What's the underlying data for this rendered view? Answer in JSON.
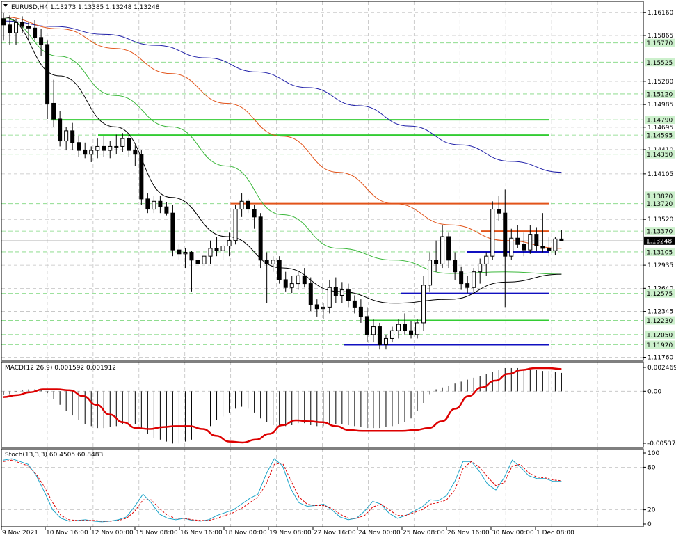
{
  "colors": {
    "background": "#ffffff",
    "grid": "#c0c0c0",
    "candle": "#000000",
    "ma_blue": "#1f1fa8",
    "ma_orange": "#e2541a",
    "ma_green": "#3cb83c",
    "ma_black": "#000000",
    "level_green": "#33cc33",
    "level_blue": "#1010c0",
    "level_orange": "#e2541a",
    "macd_hist": "#000000",
    "macd_signal": "#dd0000",
    "stoch_main": "#1aa3c8",
    "stoch_signal": "#dd0000"
  },
  "chart_data": [
    {
      "type": "candlestick",
      "panel": "price",
      "title": "EURUSD,H4  1.13273 1.13385 1.13248 1.13248",
      "symbol": "EURUSD",
      "timeframe": "H4",
      "ohlc_header": [
        1.13273,
        1.13385,
        1.13248,
        1.13248
      ],
      "current_price_label": "1.13248",
      "ylim": [
        1.1172,
        1.163
      ],
      "y_ticks": [
        1.1616,
        1.15865,
        1.1528,
        1.14985,
        1.14695,
        1.1441,
        1.141,
        1.1352,
        1.12935,
        1.1264,
        1.12345,
        1.1176
      ],
      "y_tick_labels": [
        "1.16160",
        "1.15865",
        "1.15280",
        "1.14985",
        "1.14695",
        "1.14410",
        "1.14105",
        "1.13520",
        "1.12935",
        "1.12640",
        "1.12345",
        "1.11760"
      ],
      "level_labels": [
        "1.15770",
        "1.15525",
        "1.15120",
        "1.14790",
        "1.14595",
        "1.14350",
        "1.13820",
        "1.13720",
        "1.13370",
        "1.13105",
        "1.12575",
        "1.12230",
        "1.12050",
        "1.11920"
      ],
      "x_labels": [
        "9 Nov 2021",
        "10 Nov 16:00",
        "12 Nov 00:00",
        "15 Nov 08:00",
        "16 Nov 16:00",
        "18 Nov 00:00",
        "19 Nov 08:00",
        "22 Nov 16:00",
        "24 Nov 00:00",
        "25 Nov 08:00",
        "26 Nov 16:00",
        "30 Nov 00:00",
        "1 Dec 08:00"
      ],
      "candles": [
        [
          1.1608,
          1.1615,
          1.158,
          1.16
        ],
        [
          1.16,
          1.1612,
          1.1575,
          1.159
        ],
        [
          1.159,
          1.1608,
          1.1575,
          1.1603
        ],
        [
          1.1603,
          1.1611,
          1.159,
          1.1598
        ],
        [
          1.1598,
          1.1604,
          1.158,
          1.1596
        ],
        [
          1.1596,
          1.1606,
          1.158,
          1.1584
        ],
        [
          1.1584,
          1.1595,
          1.156,
          1.1575
        ],
        [
          1.1575,
          1.158,
          1.148,
          1.15
        ],
        [
          1.15,
          1.153,
          1.147,
          1.148
        ],
        [
          1.148,
          1.149,
          1.1445,
          1.1452
        ],
        [
          1.1452,
          1.147,
          1.144,
          1.1465
        ],
        [
          1.1465,
          1.1475,
          1.144,
          1.145
        ],
        [
          1.145,
          1.1458,
          1.1432,
          1.144
        ],
        [
          1.144,
          1.145,
          1.143,
          1.1435
        ],
        [
          1.1435,
          1.1445,
          1.1425,
          1.144
        ],
        [
          1.144,
          1.1455,
          1.143,
          1.1445
        ],
        [
          1.1445,
          1.1458,
          1.1432,
          1.144
        ],
        [
          1.144,
          1.1452,
          1.143,
          1.1445
        ],
        [
          1.1445,
          1.146,
          1.1435,
          1.1445
        ],
        [
          1.1445,
          1.1462,
          1.1438,
          1.1455
        ],
        [
          1.1455,
          1.1462,
          1.1432,
          1.144
        ],
        [
          1.144,
          1.1447,
          1.142,
          1.1435
        ],
        [
          1.1435,
          1.144,
          1.137,
          1.1378
        ],
        [
          1.1378,
          1.1385,
          1.136,
          1.1365
        ],
        [
          1.1365,
          1.1382,
          1.136,
          1.1375
        ],
        [
          1.1375,
          1.1382,
          1.136,
          1.1368
        ],
        [
          1.1368,
          1.1374,
          1.1357,
          1.136
        ],
        [
          1.136,
          1.137,
          1.1305,
          1.1313
        ],
        [
          1.1313,
          1.132,
          1.13,
          1.1308
        ],
        [
          1.1308,
          1.1315,
          1.129,
          1.131
        ],
        [
          1.131,
          1.1312,
          1.126,
          1.13
        ],
        [
          1.13,
          1.1315,
          1.129,
          1.1295
        ],
        [
          1.1295,
          1.131,
          1.129,
          1.1305
        ],
        [
          1.1305,
          1.1325,
          1.1295,
          1.1315
        ],
        [
          1.1315,
          1.133,
          1.1305,
          1.1312
        ],
        [
          1.1312,
          1.132,
          1.13,
          1.1318
        ],
        [
          1.1318,
          1.1335,
          1.1305,
          1.1325
        ],
        [
          1.1325,
          1.137,
          1.132,
          1.1365
        ],
        [
          1.1365,
          1.1385,
          1.1355,
          1.1375
        ],
        [
          1.1375,
          1.1378,
          1.136,
          1.1365
        ],
        [
          1.1365,
          1.137,
          1.134,
          1.1355
        ],
        [
          1.1355,
          1.136,
          1.129,
          1.13
        ],
        [
          1.13,
          1.131,
          1.1245,
          1.1295
        ],
        [
          1.1295,
          1.1305,
          1.1285,
          1.13
        ],
        [
          1.13,
          1.1305,
          1.127,
          1.1275
        ],
        [
          1.1275,
          1.1285,
          1.126,
          1.1265
        ],
        [
          1.1265,
          1.128,
          1.1258,
          1.127
        ],
        [
          1.127,
          1.1285,
          1.1262,
          1.128
        ],
        [
          1.128,
          1.129,
          1.1265,
          1.127
        ],
        [
          1.127,
          1.1278,
          1.1235,
          1.1243
        ],
        [
          1.1243,
          1.125,
          1.1228,
          1.1238
        ],
        [
          1.1238,
          1.1245,
          1.1225,
          1.124
        ],
        [
          1.124,
          1.1275,
          1.1232,
          1.1265
        ],
        [
          1.1265,
          1.1278,
          1.1245,
          1.1255
        ],
        [
          1.1255,
          1.1272,
          1.1245,
          1.1262
        ],
        [
          1.1262,
          1.127,
          1.124,
          1.1248
        ],
        [
          1.1248,
          1.1255,
          1.1232,
          1.124
        ],
        [
          1.124,
          1.125,
          1.122,
          1.1228
        ],
        [
          1.1228,
          1.124,
          1.1195,
          1.1205
        ],
        [
          1.1205,
          1.1225,
          1.1195,
          1.1215
        ],
        [
          1.1215,
          1.122,
          1.1186,
          1.1192
        ],
        [
          1.1192,
          1.1205,
          1.1186,
          1.12
        ],
        [
          1.12,
          1.1215,
          1.1195,
          1.121
        ],
        [
          1.121,
          1.1225,
          1.12,
          1.1218
        ],
        [
          1.1218,
          1.1232,
          1.1205,
          1.121
        ],
        [
          1.121,
          1.1222,
          1.12,
          1.1205
        ],
        [
          1.1205,
          1.1225,
          1.12,
          1.122
        ],
        [
          1.122,
          1.128,
          1.121,
          1.1268
        ],
        [
          1.1268,
          1.131,
          1.126,
          1.13
        ],
        [
          1.13,
          1.1325,
          1.1285,
          1.1295
        ],
        [
          1.1295,
          1.1345,
          1.129,
          1.133
        ],
        [
          1.133,
          1.1335,
          1.129,
          1.13
        ],
        [
          1.13,
          1.131,
          1.1275,
          1.1285
        ],
        [
          1.1285,
          1.1292,
          1.1262,
          1.127
        ],
        [
          1.127,
          1.128,
          1.1258,
          1.1265
        ],
        [
          1.1265,
          1.129,
          1.126,
          1.1285
        ],
        [
          1.1285,
          1.1302,
          1.127,
          1.1295
        ],
        [
          1.1295,
          1.131,
          1.128,
          1.1305
        ],
        [
          1.1305,
          1.1375,
          1.13,
          1.1365
        ],
        [
          1.1365,
          1.1382,
          1.135,
          1.136
        ],
        [
          1.136,
          1.139,
          1.124,
          1.1305
        ],
        [
          1.1305,
          1.134,
          1.13,
          1.1328
        ],
        [
          1.1328,
          1.1345,
          1.1315,
          1.132
        ],
        [
          1.132,
          1.1335,
          1.1305,
          1.1313
        ],
        [
          1.1313,
          1.1345,
          1.1308,
          1.1333
        ],
        [
          1.1333,
          1.1342,
          1.1312,
          1.1318
        ],
        [
          1.1318,
          1.136,
          1.131,
          1.1315
        ],
        [
          1.1315,
          1.133,
          1.1305,
          1.1312
        ],
        [
          1.1312,
          1.133,
          1.1306,
          1.1327
        ],
        [
          1.1327,
          1.1338,
          1.1325,
          1.1325
        ]
      ],
      "moving_averages": [
        {
          "color": "#1f1fa8",
          "values": [
            1.1605,
            1.1598,
            1.1588,
            1.1574,
            1.1558,
            1.154,
            1.152,
            1.1497,
            1.1471,
            1.1447,
            1.1426,
            1.1412
          ]
        },
        {
          "color": "#e2541a",
          "values": [
            1.161,
            1.1595,
            1.157,
            1.1538,
            1.15,
            1.1458,
            1.1412,
            1.1372,
            1.1345,
            1.1325,
            1.1315
          ]
        },
        {
          "color": "#3cb83c",
          "values": [
            1.1608,
            1.156,
            1.151,
            1.147,
            1.142,
            1.1358,
            1.1315,
            1.13,
            1.1283,
            1.1285,
            1.1282
          ]
        },
        {
          "color": "#000000",
          "values": [
            1.161,
            1.1535,
            1.147,
            1.138,
            1.133,
            1.129,
            1.126,
            1.1245,
            1.125,
            1.1272,
            1.1282
          ]
        }
      ],
      "levels": [
        {
          "price": 1.1479,
          "color": "#33cc33",
          "from": 10,
          "to": 115
        },
        {
          "price": 1.14595,
          "color": "#33cc33",
          "from": 20,
          "to": 115
        },
        {
          "price": 1.1372,
          "color": "#e2541a",
          "from": 48,
          "to": 115
        },
        {
          "price": 1.1337,
          "color": "#e2541a",
          "from": 101,
          "to": 115
        },
        {
          "price": 1.13105,
          "color": "#1010c0",
          "from": 98,
          "to": 115
        },
        {
          "price": 1.12575,
          "color": "#1010c0",
          "from": 84,
          "to": 115
        },
        {
          "price": 1.1223,
          "color": "#33cc33",
          "from": 77,
          "to": 115
        },
        {
          "price": 1.1192,
          "color": "#1010c0",
          "from": 72,
          "to": 115
        }
      ]
    },
    {
      "type": "bar",
      "panel": "macd",
      "title": "MACD(12,26,9) 0.001592 0.001912",
      "values_header": [
        0.001592,
        0.001912
      ],
      "ylim": [
        -0.005374,
        0.002469
      ],
      "y_tick_labels": [
        "0.002469",
        "0.00",
        "-0.005374"
      ],
      "histogram": [
        -0.0004,
        -0.0003,
        -0.0001,
        0.0001,
        0.0002,
        0.0002,
        0.0001,
        -0.0002,
        -0.0008,
        -0.0014,
        -0.002,
        -0.0025,
        -0.003,
        -0.0034,
        -0.0036,
        -0.0038,
        -0.0038,
        -0.0037,
        -0.0036,
        -0.0034,
        -0.0033,
        -0.0034,
        -0.0038,
        -0.0044,
        -0.0048,
        -0.005,
        -0.0052,
        -0.0054,
        -0.0054,
        -0.0052,
        -0.005,
        -0.0046,
        -0.0042,
        -0.0036,
        -0.003,
        -0.0026,
        -0.0022,
        -0.0018,
        -0.0016,
        -0.0018,
        -0.0022,
        -0.0028,
        -0.0032,
        -0.0035,
        -0.0036,
        -0.0036,
        -0.0035,
        -0.0033,
        -0.0033,
        -0.0035,
        -0.0036,
        -0.0036,
        -0.0035,
        -0.0034,
        -0.0034,
        -0.0035,
        -0.0036,
        -0.0037,
        -0.0038,
        -0.0038,
        -0.0038,
        -0.0037,
        -0.0036,
        -0.0034,
        -0.0032,
        -0.0028,
        -0.002,
        -0.0012,
        -0.0003,
        0.0002,
        0.0004,
        0.0006,
        0.0008,
        0.001,
        0.0012,
        0.0014,
        0.0016,
        0.0018,
        0.002,
        0.0022,
        0.0024,
        0.0024,
        0.0024,
        0.0023,
        0.0022,
        0.0022,
        0.0021,
        0.0021,
        0.002,
        0.0019
      ],
      "signal": [
        -0.0006,
        -0.0004,
        -0.0001,
        0.0002,
        0.0002,
        0.0001,
        -0.0005,
        -0.0014,
        -0.0024,
        -0.0032,
        -0.0038,
        -0.0039,
        -0.0037,
        -0.0036,
        -0.0036,
        -0.0039,
        -0.0046,
        -0.0052,
        -0.0053,
        -0.005,
        -0.0044,
        -0.0035,
        -0.003,
        -0.0031,
        -0.0032,
        -0.0036,
        -0.004,
        -0.0041,
        -0.0041,
        -0.0041,
        -0.0041,
        -0.004,
        -0.0038,
        -0.0031,
        -0.0018,
        -0.0005,
        0.0004,
        0.0011,
        0.0018,
        0.0022,
        0.0024,
        0.0024,
        0.0023
      ]
    },
    {
      "type": "line",
      "panel": "stochastic",
      "title": "Stoch(13,3,3) 60.4505 60.8483",
      "values_header": [
        60.4505,
        60.8483
      ],
      "ylim": [
        0,
        100
      ],
      "y_tick_labels": [
        "100",
        "80",
        "20",
        "0"
      ],
      "main": [
        90,
        92,
        88,
        84,
        68,
        45,
        20,
        8,
        4,
        5,
        6,
        4,
        3,
        4,
        6,
        10,
        25,
        42,
        30,
        14,
        8,
        6,
        8,
        5,
        4,
        6,
        12,
        16,
        20,
        28,
        36,
        42,
        70,
        92,
        82,
        50,
        30,
        25,
        26,
        28,
        20,
        10,
        6,
        8,
        18,
        32,
        28,
        15,
        8,
        12,
        18,
        24,
        34,
        33,
        40,
        60,
        88,
        88,
        74,
        56,
        48,
        65,
        90,
        80,
        68,
        64,
        64,
        60,
        60
      ],
      "signal": [
        88,
        90,
        86,
        82,
        70,
        52,
        30,
        12,
        6,
        5,
        5,
        5,
        4,
        4,
        5,
        8,
        18,
        34,
        34,
        22,
        12,
        8,
        8,
        6,
        5,
        5,
        8,
        12,
        16,
        22,
        30,
        38,
        56,
        84,
        86,
        62,
        38,
        28,
        26,
        26,
        22,
        14,
        8,
        8,
        12,
        24,
        28,
        20,
        12,
        12,
        16,
        20,
        28,
        30,
        34,
        48,
        78,
        88,
        80,
        66,
        54,
        58,
        82,
        84,
        72,
        66,
        65,
        62,
        61
      ]
    }
  ]
}
